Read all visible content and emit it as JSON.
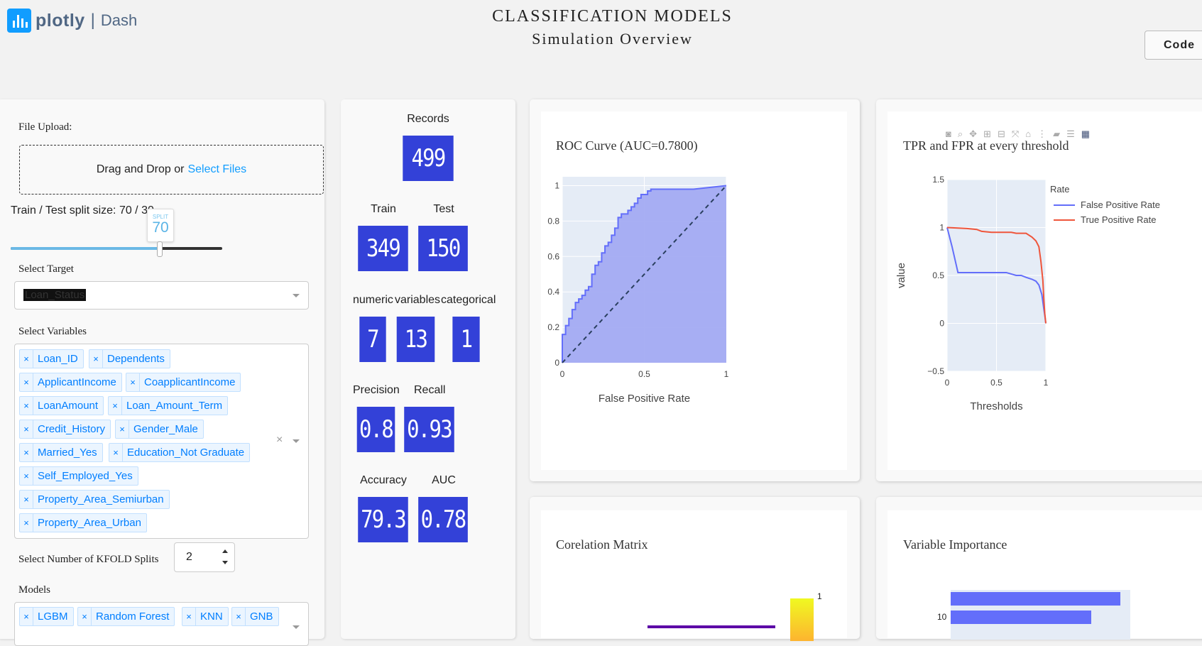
{
  "header": {
    "brand": "plotly",
    "product": "Dash",
    "title": "CLASSIFICATION MODELS",
    "subtitle": "Simulation Overview",
    "code_button": "Code"
  },
  "controls": {
    "file_upload_label": "File Upload:",
    "upload_text": "Drag and Drop or",
    "upload_link": "Select Files",
    "split_label": "Train / Test split size: 70 / 30",
    "split_badge_label": "SPLIT",
    "split_value": "70",
    "split_fraction": 0.7,
    "target_label": "Select Target",
    "target_value": "Loan_Status",
    "variables_label": "Select Variables",
    "variables": [
      "Loan_ID",
      "Dependents",
      "ApplicantIncome",
      "CoapplicantIncome",
      "LoanAmount",
      "Loan_Amount_Term",
      "Credit_History",
      "Gender_Male",
      "Married_Yes",
      "Education_Not Graduate",
      "Self_Employed_Yes",
      "Property_Area_Semiurban",
      "Property_Area_Urban"
    ],
    "kfold_label": "Select Number of KFOLD Splits",
    "kfold_value": "2",
    "models_label": "Models",
    "models": [
      "LGBM",
      "Random Forest",
      "KNN",
      "GNB"
    ],
    "chip_remove": "×",
    "clear_icon": "×"
  },
  "stats": {
    "records_label": "Records",
    "records": "499",
    "train_label": "Train",
    "train": "349",
    "test_label": "Test",
    "test": "150",
    "numeric_label": "numeric",
    "numeric": "7",
    "variables_label": "variables",
    "variables": "13",
    "categorical_label": "categorical",
    "categorical": "1",
    "precision_label": "Precision",
    "precision": "0.8",
    "recall_label": "Recall",
    "recall": "0.93",
    "accuracy_label": "Accuracy",
    "accuracy": "79.3",
    "auc_label": "AUC",
    "auc": "0.78"
  },
  "colors": {
    "accent": "#119dff",
    "stat_box": "#3341d8",
    "roc_fill": "#a3abf2",
    "roc_line": "#636efa",
    "fpr_line": "#636efa",
    "tpr_line": "#ef553b",
    "plot_bg": "#e5ecf6"
  },
  "chart_data": [
    {
      "type": "area",
      "title": "ROC Curve (AUC=0.7800)",
      "xlabel": "False Positive Rate",
      "ylabel": "True Positive Rate",
      "xlim": [
        0,
        1
      ],
      "ylim": [
        0,
        1.05
      ],
      "xticks": [
        "0",
        "0.5",
        "1"
      ],
      "yticks": [
        "0",
        "0.2",
        "0.4",
        "0.6",
        "0.8",
        "1"
      ],
      "x": [
        0,
        0,
        0.02,
        0.02,
        0.04,
        0.04,
        0.06,
        0.06,
        0.08,
        0.08,
        0.1,
        0.1,
        0.12,
        0.12,
        0.14,
        0.14,
        0.16,
        0.16,
        0.18,
        0.18,
        0.2,
        0.2,
        0.22,
        0.22,
        0.24,
        0.24,
        0.26,
        0.26,
        0.28,
        0.28,
        0.3,
        0.3,
        0.32,
        0.32,
        0.34,
        0.34,
        0.36,
        0.36,
        0.4,
        0.4,
        0.42,
        0.42,
        0.44,
        0.44,
        0.46,
        0.46,
        0.48,
        0.48,
        0.52,
        0.52,
        0.54,
        0.54,
        0.8,
        0.8,
        1
      ],
      "y": [
        0,
        0.16,
        0.16,
        0.21,
        0.21,
        0.25,
        0.25,
        0.3,
        0.3,
        0.34,
        0.34,
        0.36,
        0.36,
        0.38,
        0.38,
        0.41,
        0.41,
        0.43,
        0.43,
        0.5,
        0.5,
        0.55,
        0.55,
        0.57,
        0.57,
        0.62,
        0.62,
        0.66,
        0.66,
        0.68,
        0.68,
        0.72,
        0.72,
        0.76,
        0.76,
        0.82,
        0.82,
        0.84,
        0.84,
        0.86,
        0.86,
        0.88,
        0.88,
        0.9,
        0.9,
        0.93,
        0.93,
        0.95,
        0.95,
        0.97,
        0.97,
        0.98,
        0.98,
        0.98,
        1
      ],
      "diagonal": true
    },
    {
      "type": "line",
      "title": "TPR and FPR at every threshold",
      "xlabel": "Thresholds",
      "ylabel": "value",
      "xlim": [
        0,
        1
      ],
      "ylim": [
        -0.5,
        1.5
      ],
      "xticks": [
        "0",
        "0.5",
        "1"
      ],
      "yticks": [
        "−0.5",
        "0",
        "0.5",
        "1",
        "1.5"
      ],
      "legend_title": "Rate",
      "series": [
        {
          "name": "False Positive Rate",
          "x": [
            0,
            0.05,
            0.11,
            0.2,
            0.3,
            0.45,
            0.6,
            0.7,
            0.75,
            0.8,
            0.86,
            0.9,
            0.93,
            0.96,
            0.98,
            0.99,
            1
          ],
          "y": [
            1,
            0.8,
            0.53,
            0.53,
            0.53,
            0.53,
            0.53,
            0.5,
            0.5,
            0.48,
            0.46,
            0.44,
            0.4,
            0.3,
            0.15,
            0.08,
            0
          ]
        },
        {
          "name": "True Positive Rate",
          "x": [
            0,
            0.2,
            0.3,
            0.35,
            0.45,
            0.65,
            0.7,
            0.8,
            0.86,
            0.9,
            0.93,
            0.95,
            0.97,
            0.98,
            0.99,
            1
          ],
          "y": [
            1,
            0.99,
            0.98,
            0.96,
            0.95,
            0.95,
            0.94,
            0.94,
            0.9,
            0.86,
            0.8,
            0.65,
            0.45,
            0.25,
            0.1,
            0
          ]
        }
      ]
    },
    {
      "type": "heatmap",
      "title": "Corelation Matrix",
      "colorbar_max": "1"
    },
    {
      "type": "bar",
      "title": "Variable Importance",
      "yticks": [
        "10"
      ]
    }
  ]
}
